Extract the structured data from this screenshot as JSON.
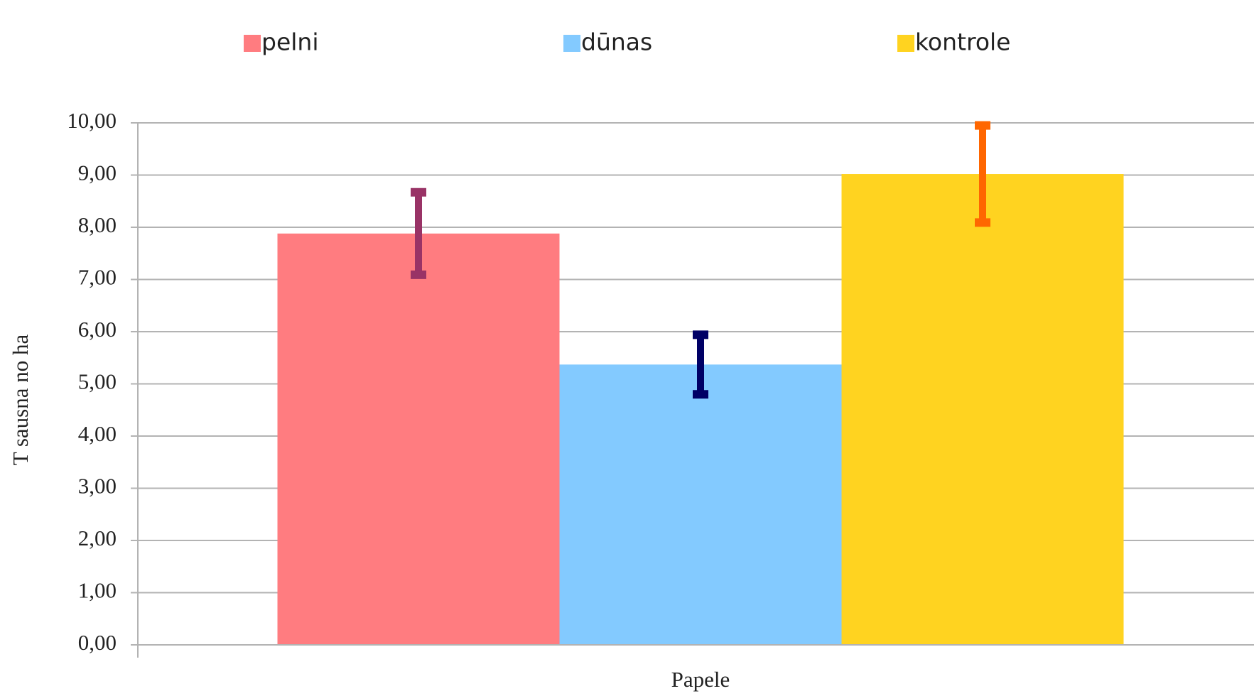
{
  "chart_data": {
    "type": "bar",
    "x_label": "Papele",
    "y_label": "T sausna no ha",
    "categories": [
      "Papele"
    ],
    "series": [
      {
        "name": "pelni",
        "color": "#ff7c80",
        "error_color": "#993366",
        "values": [
          7.88
        ],
        "errors": [
          0.79
        ]
      },
      {
        "name": "dūnas",
        "color": "#83caff",
        "error_color": "#000066",
        "values": [
          5.37
        ],
        "errors": [
          0.57
        ]
      },
      {
        "name": "kontrole",
        "color": "#ffd320",
        "error_color": "#ff6600",
        "values": [
          9.02
        ],
        "errors": [
          0.93
        ]
      }
    ],
    "ylim": [
      0,
      10
    ],
    "yticks": [
      {
        "value": 0,
        "label": "0,00"
      },
      {
        "value": 1,
        "label": "1,00"
      },
      {
        "value": 2,
        "label": "2,00"
      },
      {
        "value": 3,
        "label": "3,00"
      },
      {
        "value": 4,
        "label": "4,00"
      },
      {
        "value": 5,
        "label": "5,00"
      },
      {
        "value": 6,
        "label": "6,00"
      },
      {
        "value": 7,
        "label": "7,00"
      },
      {
        "value": 8,
        "label": "8,00"
      },
      {
        "value": 9,
        "label": "9,00"
      },
      {
        "value": 10,
        "label": "10,00"
      }
    ],
    "grid": true,
    "legend": "top"
  }
}
